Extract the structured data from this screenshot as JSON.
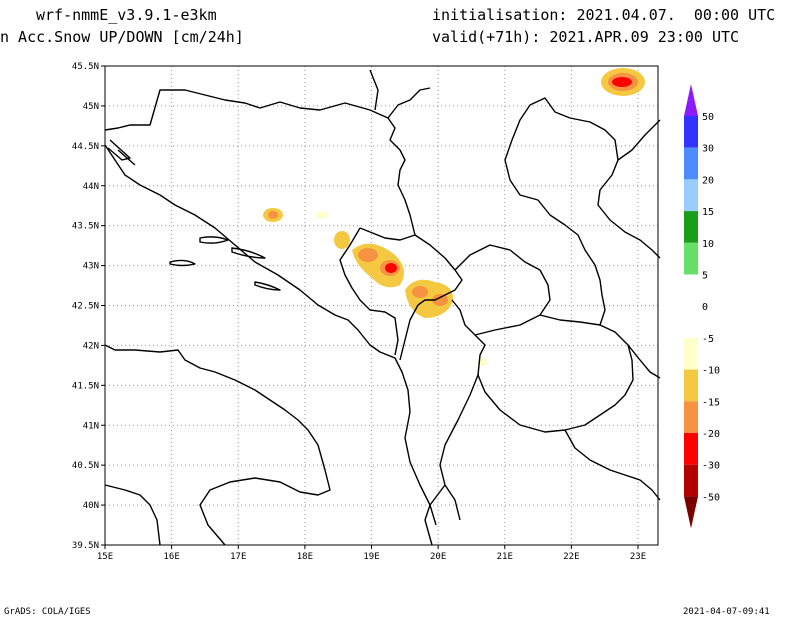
{
  "header": {
    "model": "wrf-nmmE_v3.9.1-e3km",
    "field": "n Acc.Snow UP/DOWN [cm/24h]",
    "init": "initialisation: 2021.04.07.  00:00 UTC",
    "valid": "valid(+71h): 2021.APR.09 23:00 UTC"
  },
  "map": {
    "lat_labels": [
      "45.5N",
      "45N",
      "44.5N",
      "44N",
      "43.5N",
      "43N",
      "42.5N",
      "42N",
      "41.5N",
      "41N",
      "40.5N",
      "40N",
      "39.5N"
    ],
    "lon_labels": [
      "15E",
      "16E",
      "17E",
      "18E",
      "19E",
      "20E",
      "21E",
      "22E",
      "23E"
    ],
    "lat_range": [
      39.5,
      45.5
    ],
    "lon_range": [
      15.0,
      23.3
    ],
    "grid": "dotted"
  },
  "legend": {
    "labels": [
      "50",
      "30",
      "20",
      "15",
      "10",
      "5",
      "0",
      "-5",
      "-10",
      "-15",
      "-20",
      "-30",
      "-50"
    ],
    "colors": [
      "#8c1aff",
      "#3333ff",
      "#4d8cff",
      "#99ccff",
      "#1a9e1a",
      "#66e066",
      "#ffffff",
      "#ffffff",
      "#ffffcc",
      "#f5c842",
      "#f59342",
      "#ff0000",
      "#b30000",
      "#7a0000"
    ],
    "top_color": "#8c1aff",
    "bottom_color": "#7a0000"
  },
  "footer": {
    "left": "GrADS: COLA/IGES",
    "right": "2021-04-07-09:41"
  }
}
